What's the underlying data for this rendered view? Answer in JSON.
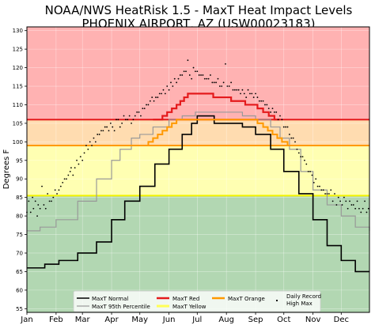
{
  "chart_data": {
    "type": "line",
    "title": "NOAA/NWS HeatRisk 1.5 - MaxT Heat Impact Levels",
    "subtitle": "PHOENIX AIRPORT, AZ (USW00023183)",
    "ylabel": "Degrees F",
    "xlabel": "",
    "ylim": [
      54,
      131
    ],
    "xlim": [
      1,
      365
    ],
    "yticks": [
      55,
      60,
      65,
      70,
      75,
      80,
      85,
      90,
      95,
      100,
      105,
      110,
      115,
      120,
      125,
      130
    ],
    "x_ticks": [
      {
        "label": "Jan",
        "day": 1
      },
      {
        "label": "Feb",
        "day": 32
      },
      {
        "label": "Mar",
        "day": 60
      },
      {
        "label": "Apr",
        "day": 91
      },
      {
        "label": "May",
        "day": 121
      },
      {
        "label": "Jun",
        "day": 152
      },
      {
        "label": "Jul",
        "day": 182
      },
      {
        "label": "Aug",
        "day": 213
      },
      {
        "label": "Sep",
        "day": 244
      },
      {
        "label": "Oct",
        "day": 274
      },
      {
        "label": "Nov",
        "day": 305
      },
      {
        "label": "Dec",
        "day": 335
      }
    ],
    "grid": true,
    "legend_placement": "bottom-center",
    "zones": [
      {
        "name": "green",
        "from": 54,
        "to": 85.5,
        "color": "#b2d7b2"
      },
      {
        "name": "yellow",
        "from": 85.5,
        "to": 99,
        "color": "#ffffb2"
      },
      {
        "name": "orange",
        "from": 99,
        "to": 106,
        "color": "#ffdcb0"
      },
      {
        "name": "red",
        "from": 106,
        "to": 131,
        "color": "#ffb2b2"
      }
    ],
    "hlines": [
      {
        "value": 106,
        "color": "#e41a1c"
      },
      {
        "value": 99,
        "color": "#ff9900"
      },
      {
        "value": 85.5,
        "color": "#f2f200"
      }
    ],
    "series": [
      {
        "name": "MaxT Normal",
        "color": "#000000",
        "style": "step",
        "points": [
          [
            1,
            66
          ],
          [
            20,
            67
          ],
          [
            35,
            68
          ],
          [
            55,
            70
          ],
          [
            75,
            73
          ],
          [
            91,
            79
          ],
          [
            105,
            84
          ],
          [
            121,
            88
          ],
          [
            137,
            94
          ],
          [
            152,
            98
          ],
          [
            166,
            102
          ],
          [
            176,
            105
          ],
          [
            182,
            107
          ],
          [
            195,
            107
          ],
          [
            200,
            105
          ],
          [
            215,
            105
          ],
          [
            230,
            104
          ],
          [
            244,
            102
          ],
          [
            260,
            98
          ],
          [
            274,
            92
          ],
          [
            290,
            86
          ],
          [
            305,
            79
          ],
          [
            320,
            72
          ],
          [
            335,
            68
          ],
          [
            350,
            65
          ],
          [
            365,
            65
          ]
        ]
      },
      {
        "name": "MaxT 95th Percentile",
        "color": "#999999",
        "style": "step",
        "points": [
          [
            1,
            76
          ],
          [
            15,
            77
          ],
          [
            32,
            79
          ],
          [
            55,
            84
          ],
          [
            75,
            90
          ],
          [
            91,
            95
          ],
          [
            100,
            98
          ],
          [
            112,
            101
          ],
          [
            121,
            102
          ],
          [
            135,
            104
          ],
          [
            152,
            106
          ],
          [
            166,
            107
          ],
          [
            180,
            108
          ],
          [
            195,
            108
          ],
          [
            210,
            108
          ],
          [
            230,
            107
          ],
          [
            244,
            106
          ],
          [
            260,
            104
          ],
          [
            270,
            101
          ],
          [
            280,
            98
          ],
          [
            292,
            92
          ],
          [
            305,
            87
          ],
          [
            320,
            83
          ],
          [
            335,
            80
          ],
          [
            350,
            77
          ],
          [
            365,
            76
          ]
        ]
      },
      {
        "name": "MaxT Red",
        "color": "#e41a1c",
        "style": "step",
        "points": [
          [
            135,
            106
          ],
          [
            140,
            106
          ],
          [
            145,
            107
          ],
          [
            150,
            108
          ],
          [
            155,
            109
          ],
          [
            160,
            110
          ],
          [
            164,
            111
          ],
          [
            168,
            112
          ],
          [
            172,
            113
          ],
          [
            195,
            113
          ],
          [
            199,
            112
          ],
          [
            213,
            112
          ],
          [
            218,
            111
          ],
          [
            228,
            111
          ],
          [
            233,
            110
          ],
          [
            240,
            110
          ],
          [
            246,
            109
          ],
          [
            252,
            108
          ],
          [
            258,
            107
          ],
          [
            264,
            106
          ],
          [
            270,
            106
          ]
        ]
      },
      {
        "name": "MaxT Orange",
        "color": "#ff9900",
        "style": "step",
        "points": [
          [
            100,
            99
          ],
          [
            125,
            99
          ],
          [
            130,
            100
          ],
          [
            135,
            101
          ],
          [
            140,
            102
          ],
          [
            145,
            103
          ],
          [
            150,
            104
          ],
          [
            155,
            105
          ],
          [
            160,
            106
          ],
          [
            205,
            106
          ],
          [
            225,
            106
          ],
          [
            235,
            106
          ],
          [
            246,
            105
          ],
          [
            252,
            104
          ],
          [
            257,
            103
          ],
          [
            262,
            102
          ],
          [
            267,
            101
          ],
          [
            272,
            100
          ],
          [
            278,
            99
          ],
          [
            290,
            99
          ]
        ]
      },
      {
        "name": "MaxT Yellow",
        "color": "#ffff55",
        "style": "line",
        "points": []
      },
      {
        "name": "Daily Record High Max",
        "color": "#000000",
        "style": "dots",
        "points": [
          [
            1,
            81
          ],
          [
            3,
            84
          ],
          [
            5,
            81
          ],
          [
            7,
            85
          ],
          [
            8,
            82
          ],
          [
            10,
            84
          ],
          [
            12,
            80
          ],
          [
            13,
            83
          ],
          [
            15,
            82
          ],
          [
            17,
            88
          ],
          [
            19,
            83
          ],
          [
            21,
            82
          ],
          [
            23,
            86
          ],
          [
            25,
            84
          ],
          [
            27,
            84
          ],
          [
            29,
            85
          ],
          [
            31,
            87
          ],
          [
            33,
            86
          ],
          [
            35,
            87
          ],
          [
            37,
            88
          ],
          [
            39,
            89
          ],
          [
            41,
            90
          ],
          [
            43,
            90
          ],
          [
            45,
            91
          ],
          [
            47,
            92
          ],
          [
            48,
            93
          ],
          [
            50,
            91
          ],
          [
            52,
            93
          ],
          [
            54,
            95
          ],
          [
            56,
            94
          ],
          [
            58,
            96
          ],
          [
            60,
            95
          ],
          [
            62,
            97
          ],
          [
            64,
            99
          ],
          [
            66,
            98
          ],
          [
            68,
            100
          ],
          [
            70,
            99
          ],
          [
            72,
            101
          ],
          [
            74,
            100
          ],
          [
            76,
            102
          ],
          [
            78,
            102
          ],
          [
            80,
            103
          ],
          [
            82,
            103
          ],
          [
            84,
            104
          ],
          [
            86,
            104
          ],
          [
            88,
            103
          ],
          [
            90,
            105
          ],
          [
            92,
            104
          ],
          [
            94,
            103
          ],
          [
            96,
            106
          ],
          [
            98,
            106
          ],
          [
            100,
            104
          ],
          [
            102,
            105
          ],
          [
            104,
            107
          ],
          [
            106,
            106
          ],
          [
            108,
            106
          ],
          [
            110,
            107
          ],
          [
            112,
            105
          ],
          [
            114,
            106
          ],
          [
            116,
            107
          ],
          [
            118,
            108
          ],
          [
            120,
            108
          ],
          [
            122,
            107
          ],
          [
            124,
            109
          ],
          [
            126,
            109
          ],
          [
            128,
            110
          ],
          [
            130,
            110
          ],
          [
            132,
            111
          ],
          [
            134,
            112
          ],
          [
            136,
            111
          ],
          [
            138,
            112
          ],
          [
            140,
            112
          ],
          [
            142,
            113
          ],
          [
            144,
            113
          ],
          [
            146,
            114
          ],
          [
            148,
            113
          ],
          [
            150,
            115
          ],
          [
            152,
            114
          ],
          [
            154,
            116
          ],
          [
            156,
            115
          ],
          [
            158,
            117
          ],
          [
            160,
            116
          ],
          [
            162,
            117
          ],
          [
            164,
            118
          ],
          [
            166,
            118
          ],
          [
            168,
            119
          ],
          [
            170,
            119
          ],
          [
            172,
            122
          ],
          [
            174,
            118
          ],
          [
            176,
            117
          ],
          [
            178,
            120
          ],
          [
            180,
            119
          ],
          [
            182,
            119
          ],
          [
            184,
            118
          ],
          [
            186,
            118
          ],
          [
            188,
            118
          ],
          [
            190,
            117
          ],
          [
            192,
            117
          ],
          [
            194,
            117
          ],
          [
            196,
            118
          ],
          [
            198,
            116
          ],
          [
            200,
            116
          ],
          [
            202,
            116
          ],
          [
            204,
            117
          ],
          [
            206,
            115
          ],
          [
            208,
            115
          ],
          [
            210,
            116
          ],
          [
            212,
            121
          ],
          [
            214,
            115
          ],
          [
            216,
            115
          ],
          [
            218,
            116
          ],
          [
            220,
            114
          ],
          [
            222,
            114
          ],
          [
            224,
            114
          ],
          [
            226,
            114
          ],
          [
            228,
            113
          ],
          [
            230,
            114
          ],
          [
            232,
            113
          ],
          [
            234,
            112
          ],
          [
            236,
            114
          ],
          [
            238,
            113
          ],
          [
            240,
            113
          ],
          [
            242,
            112
          ],
          [
            244,
            113
          ],
          [
            246,
            112
          ],
          [
            248,
            111
          ],
          [
            250,
            111
          ],
          [
            252,
            111
          ],
          [
            254,
            110
          ],
          [
            256,
            110
          ],
          [
            258,
            109
          ],
          [
            260,
            108
          ],
          [
            262,
            109
          ],
          [
            264,
            108
          ],
          [
            266,
            108
          ],
          [
            268,
            106
          ],
          [
            270,
            107
          ],
          [
            272,
            106
          ],
          [
            274,
            104
          ],
          [
            276,
            104
          ],
          [
            278,
            104
          ],
          [
            280,
            102
          ],
          [
            282,
            101
          ],
          [
            284,
            101
          ],
          [
            286,
            100
          ],
          [
            288,
            98
          ],
          [
            290,
            97
          ],
          [
            292,
            96
          ],
          [
            294,
            96
          ],
          [
            296,
            95
          ],
          [
            298,
            94
          ],
          [
            300,
            92
          ],
          [
            302,
            92
          ],
          [
            304,
            91
          ],
          [
            306,
            89
          ],
          [
            308,
            90
          ],
          [
            310,
            88
          ],
          [
            312,
            88
          ],
          [
            314,
            87
          ],
          [
            316,
            87
          ],
          [
            318,
            86
          ],
          [
            320,
            86
          ],
          [
            322,
            86
          ],
          [
            324,
            87
          ],
          [
            326,
            84
          ],
          [
            328,
            86
          ],
          [
            330,
            83
          ],
          [
            332,
            85
          ],
          [
            334,
            84
          ],
          [
            336,
            83
          ],
          [
            338,
            85
          ],
          [
            340,
            84
          ],
          [
            342,
            82
          ],
          [
            344,
            84
          ],
          [
            346,
            83
          ],
          [
            348,
            83
          ],
          [
            350,
            82
          ],
          [
            352,
            84
          ],
          [
            354,
            82
          ],
          [
            356,
            81
          ],
          [
            358,
            82
          ],
          [
            360,
            84
          ],
          [
            362,
            81
          ],
          [
            364,
            82
          ]
        ]
      }
    ]
  }
}
